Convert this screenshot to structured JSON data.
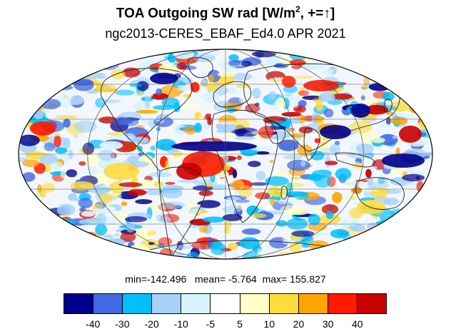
{
  "title": {
    "main": "TOA Outgoing SW rad [W/m",
    "superscript": "2",
    "suffix": ", +=↑]"
  },
  "subtitle": "ngc2013-CERES_EBAF_Ed4.0 APR 2021",
  "stats": {
    "min_label": "min=",
    "min": "-142.496",
    "mean_label": "mean=",
    "mean": "-5.764",
    "max_label": "max=",
    "max": "155.827"
  },
  "colorbar": {
    "colors": [
      "#00008b",
      "#4169e1",
      "#00bfff",
      "#a6d2fa",
      "#d7f3ff",
      "#ffffff",
      "#ffffc8",
      "#ffdc3c",
      "#ffa500",
      "#ff1a00",
      "#c80000"
    ],
    "labels": [
      "-40",
      "-30",
      "-20",
      "-10",
      "-5",
      "5",
      "10",
      "20",
      "30",
      "40"
    ]
  },
  "map": {
    "projection": "mollweide",
    "ocean_bg": "#f2f7ff",
    "gridline_color": "#555555"
  }
}
